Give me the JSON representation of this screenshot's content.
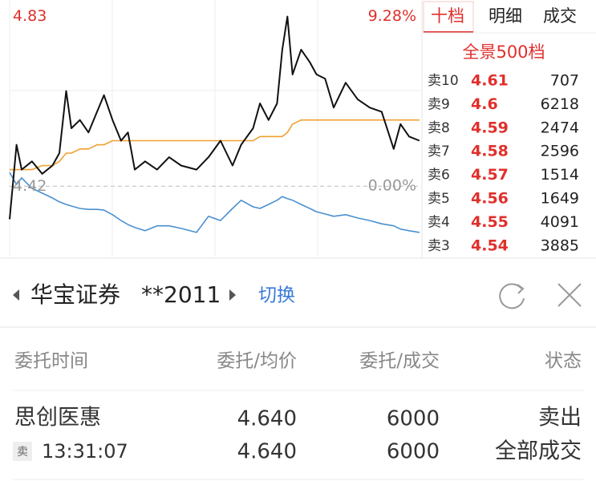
{
  "chart": {
    "type": "line",
    "x": [
      0,
      4,
      7,
      13,
      19,
      25,
      29,
      33,
      36,
      41,
      46,
      51,
      55,
      60,
      65,
      69,
      73,
      79,
      86,
      93,
      100,
      109,
      116,
      123,
      130,
      135,
      142,
      146,
      151,
      156,
      159,
      162,
      165,
      170,
      175,
      179,
      184,
      189,
      196,
      203,
      210,
      217,
      224,
      228,
      233,
      239
    ],
    "xlim": [
      0,
      240
    ],
    "ylim": [
      4.25,
      4.87
    ],
    "yticks": [
      {
        "value": 4.83,
        "label": "4.83"
      },
      {
        "value": 4.42,
        "label": "4.42"
      }
    ],
    "y2lim": [
      -3.85,
      10.18
    ],
    "y2ticks": [
      {
        "value": 9.28,
        "label": "9.28%"
      },
      {
        "value": 0,
        "label": "0.00%"
      }
    ],
    "series": [
      {
        "color": "#111111",
        "values": [
          4.34,
          4.52,
          4.46,
          4.48,
          4.45,
          4.47,
          4.5,
          4.65,
          4.56,
          4.58,
          4.55,
          4.6,
          4.64,
          4.58,
          4.53,
          4.55,
          4.46,
          4.48,
          4.46,
          4.49,
          4.47,
          4.46,
          4.49,
          4.53,
          4.47,
          4.52,
          4.56,
          4.62,
          4.58,
          4.62,
          4.75,
          4.83,
          4.69,
          4.75,
          4.72,
          4.69,
          4.68,
          4.61,
          4.67,
          4.63,
          4.61,
          4.6,
          4.51,
          4.57,
          4.54,
          4.53
        ]
      },
      {
        "color": "#f0a030",
        "values": [
          4.46,
          4.46,
          4.46,
          4.46,
          4.47,
          4.47,
          4.48,
          4.5,
          4.5,
          4.51,
          4.51,
          4.52,
          4.52,
          4.53,
          4.53,
          4.53,
          4.53,
          4.53,
          4.53,
          4.53,
          4.53,
          4.53,
          4.53,
          4.53,
          4.53,
          4.53,
          4.53,
          4.54,
          4.54,
          4.54,
          4.54,
          4.55,
          4.57,
          4.58,
          4.58,
          4.58,
          4.58,
          4.58,
          4.58,
          4.58,
          4.58,
          4.58,
          4.58,
          4.58,
          4.58,
          4.58
        ]
      },
      {
        "color": "#4a90d0",
        "axis": "y2",
        "values": [
          0.75,
          0.09,
          0.45,
          -0.12,
          -0.38,
          -0.65,
          -0.86,
          -1.0,
          -1.09,
          -1.22,
          -1.27,
          -1.27,
          -1.31,
          -1.56,
          -1.88,
          -2.1,
          -2.26,
          -2.44,
          -2.17,
          -2.17,
          -2.31,
          -2.53,
          -1.65,
          -1.88,
          -1.22,
          -0.77,
          -1.13,
          -1.22,
          -1.0,
          -0.77,
          -0.57,
          -0.68,
          -0.77,
          -1.0,
          -1.22,
          -1.4,
          -1.52,
          -1.65,
          -1.56,
          -1.74,
          -1.88,
          -2.06,
          -2.17,
          -2.35,
          -2.44,
          -2.53
        ]
      }
    ]
  },
  "order_book": {
    "tabs": [
      "十档",
      "明细",
      "成交"
    ],
    "title": "全景500档",
    "rows": [
      {
        "label": "卖10",
        "price": 4.61,
        "volume": 707
      },
      {
        "label": "卖9",
        "price": 4.6,
        "volume": 6218
      },
      {
        "label": "卖8",
        "price": 4.59,
        "volume": 2474
      },
      {
        "label": "卖7",
        "price": 4.58,
        "volume": 2596
      },
      {
        "label": "卖6",
        "price": 4.57,
        "volume": 1514
      },
      {
        "label": "卖5",
        "price": 4.56,
        "volume": 1649
      },
      {
        "label": "卖4",
        "price": 4.55,
        "volume": 4091
      },
      {
        "label": "卖3",
        "price": 4.54,
        "volume": 3885
      }
    ]
  },
  "account": {
    "broker": "华宝证券",
    "account": "**2011",
    "switch": "切换"
  },
  "orders": {
    "headers": [
      "委托时间",
      "委托/均价",
      "委托/成交",
      "状态"
    ],
    "rows": [
      {
        "name": "思创医惠",
        "side": "卖",
        "time": "13:31:07",
        "price": "4.640",
        "avg_price": "4.640",
        "quantity": 6000,
        "filled": 6000,
        "direction": "卖出",
        "status": "全部成交"
      }
    ]
  }
}
